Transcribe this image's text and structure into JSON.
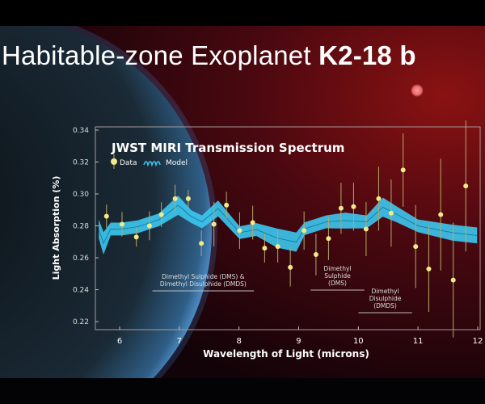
{
  "header": {
    "title_light": "Habitable-zone Exoplanet",
    "title_bold": "K2-18 b"
  },
  "colors": {
    "model": "#3cc8f0",
    "data": "#f3e98a",
    "errorbar": "#b8a968",
    "axis": "#c9b9b9"
  },
  "chart_data": {
    "type": "scatter",
    "title": "JWST MIRI Transmission Spectrum",
    "xlabel": "Wavelength of Light (microns)",
    "ylabel": "Light Absorption (%)",
    "xlim": [
      5.7,
      12
    ],
    "ylim": [
      0.215,
      0.345
    ],
    "xticks": [
      "6",
      "7",
      "8",
      "9",
      "10",
      "11",
      "12"
    ],
    "yticks": [
      "0.22",
      "0.24",
      "0.26",
      "0.28",
      "0.30",
      "0.32",
      "0.34"
    ],
    "legend": {
      "position": "top-left",
      "data_label": "Data",
      "model_label": "Model"
    },
    "data": [
      {
        "x": 5.78,
        "y": 0.286,
        "err": 0.0073
      },
      {
        "x": 6.04,
        "y": 0.281,
        "err": 0.0076
      },
      {
        "x": 6.28,
        "y": 0.273,
        "err": 0.006
      },
      {
        "x": 6.5,
        "y": 0.28,
        "err": 0.009
      },
      {
        "x": 6.7,
        "y": 0.287,
        "err": 0.0078
      },
      {
        "x": 6.93,
        "y": 0.297,
        "err": 0.0088
      },
      {
        "x": 7.15,
        "y": 0.297,
        "err": 0.0055
      },
      {
        "x": 7.37,
        "y": 0.269,
        "err": 0.008
      },
      {
        "x": 7.58,
        "y": 0.281,
        "err": 0.0138
      },
      {
        "x": 7.79,
        "y": 0.293,
        "err": 0.0083
      },
      {
        "x": 8.01,
        "y": 0.277,
        "err": 0.0115
      },
      {
        "x": 8.23,
        "y": 0.282,
        "err": 0.0106
      },
      {
        "x": 8.43,
        "y": 0.266,
        "err": 0.009
      },
      {
        "x": 8.65,
        "y": 0.267,
        "err": 0.01
      },
      {
        "x": 8.86,
        "y": 0.254,
        "err": 0.012
      },
      {
        "x": 9.09,
        "y": 0.277,
        "err": 0.012
      },
      {
        "x": 9.29,
        "y": 0.262,
        "err": 0.013
      },
      {
        "x": 9.5,
        "y": 0.272,
        "err": 0.0135
      },
      {
        "x": 9.71,
        "y": 0.291,
        "err": 0.016
      },
      {
        "x": 9.92,
        "y": 0.292,
        "err": 0.015
      },
      {
        "x": 10.13,
        "y": 0.278,
        "err": 0.017
      },
      {
        "x": 10.34,
        "y": 0.297,
        "err": 0.02
      },
      {
        "x": 10.55,
        "y": 0.288,
        "err": 0.021
      },
      {
        "x": 10.75,
        "y": 0.315,
        "err": 0.023
      },
      {
        "x": 10.96,
        "y": 0.267,
        "err": 0.026
      },
      {
        "x": 11.18,
        "y": 0.253,
        "err": 0.027
      },
      {
        "x": 11.38,
        "y": 0.287,
        "err": 0.035
      },
      {
        "x": 11.59,
        "y": 0.246,
        "err": 0.036
      },
      {
        "x": 11.8,
        "y": 0.305,
        "err": 0.041
      }
    ],
    "model": [
      {
        "x": 5.65,
        "y": 0.278,
        "band": 0.006
      },
      {
        "x": 5.73,
        "y": 0.269,
        "band": 0.007
      },
      {
        "x": 5.85,
        "y": 0.278,
        "band": 0.004
      },
      {
        "x": 6.03,
        "y": 0.278,
        "band": 0.004
      },
      {
        "x": 6.3,
        "y": 0.2794,
        "band": 0.004
      },
      {
        "x": 6.66,
        "y": 0.2838,
        "band": 0.004
      },
      {
        "x": 6.98,
        "y": 0.2929,
        "band": 0.006
      },
      {
        "x": 7.2,
        "y": 0.2858,
        "band": 0.004
      },
      {
        "x": 7.38,
        "y": 0.2825,
        "band": 0.004
      },
      {
        "x": 7.65,
        "y": 0.2909,
        "band": 0.005
      },
      {
        "x": 8.01,
        "y": 0.2757,
        "band": 0.004
      },
      {
        "x": 8.29,
        "y": 0.2777,
        "band": 0.004
      },
      {
        "x": 8.64,
        "y": 0.2723,
        "band": 0.006
      },
      {
        "x": 8.96,
        "y": 0.2698,
        "band": 0.006
      },
      {
        "x": 9.1,
        "y": 0.2782,
        "band": 0.004
      },
      {
        "x": 9.46,
        "y": 0.2825,
        "band": 0.004
      },
      {
        "x": 9.78,
        "y": 0.2833,
        "band": 0.005
      },
      {
        "x": 10.14,
        "y": 0.2825,
        "band": 0.004
      },
      {
        "x": 10.41,
        "y": 0.2917,
        "band": 0.006
      },
      {
        "x": 10.63,
        "y": 0.2875,
        "band": 0.005
      },
      {
        "x": 11.0,
        "y": 0.28,
        "band": 0.004
      },
      {
        "x": 11.58,
        "y": 0.2757,
        "band": 0.005
      },
      {
        "x": 11.99,
        "y": 0.274,
        "band": 0.005
      }
    ],
    "annotations": [
      {
        "lines": [
          "Dimethyl Sulphide (DMS) &",
          "Dimethyl Disulphide (DMDS)"
        ],
        "x_range": [
          6.55,
          8.25
        ]
      },
      {
        "lines": [
          "Dimethyl",
          "Sulphide",
          "(DMS)"
        ],
        "x_range": [
          9.2,
          10.1
        ]
      },
      {
        "lines": [
          "Dimethyl",
          "Disulphide",
          "(DMDS)"
        ],
        "x_range": [
          10.0,
          10.9
        ]
      }
    ]
  }
}
